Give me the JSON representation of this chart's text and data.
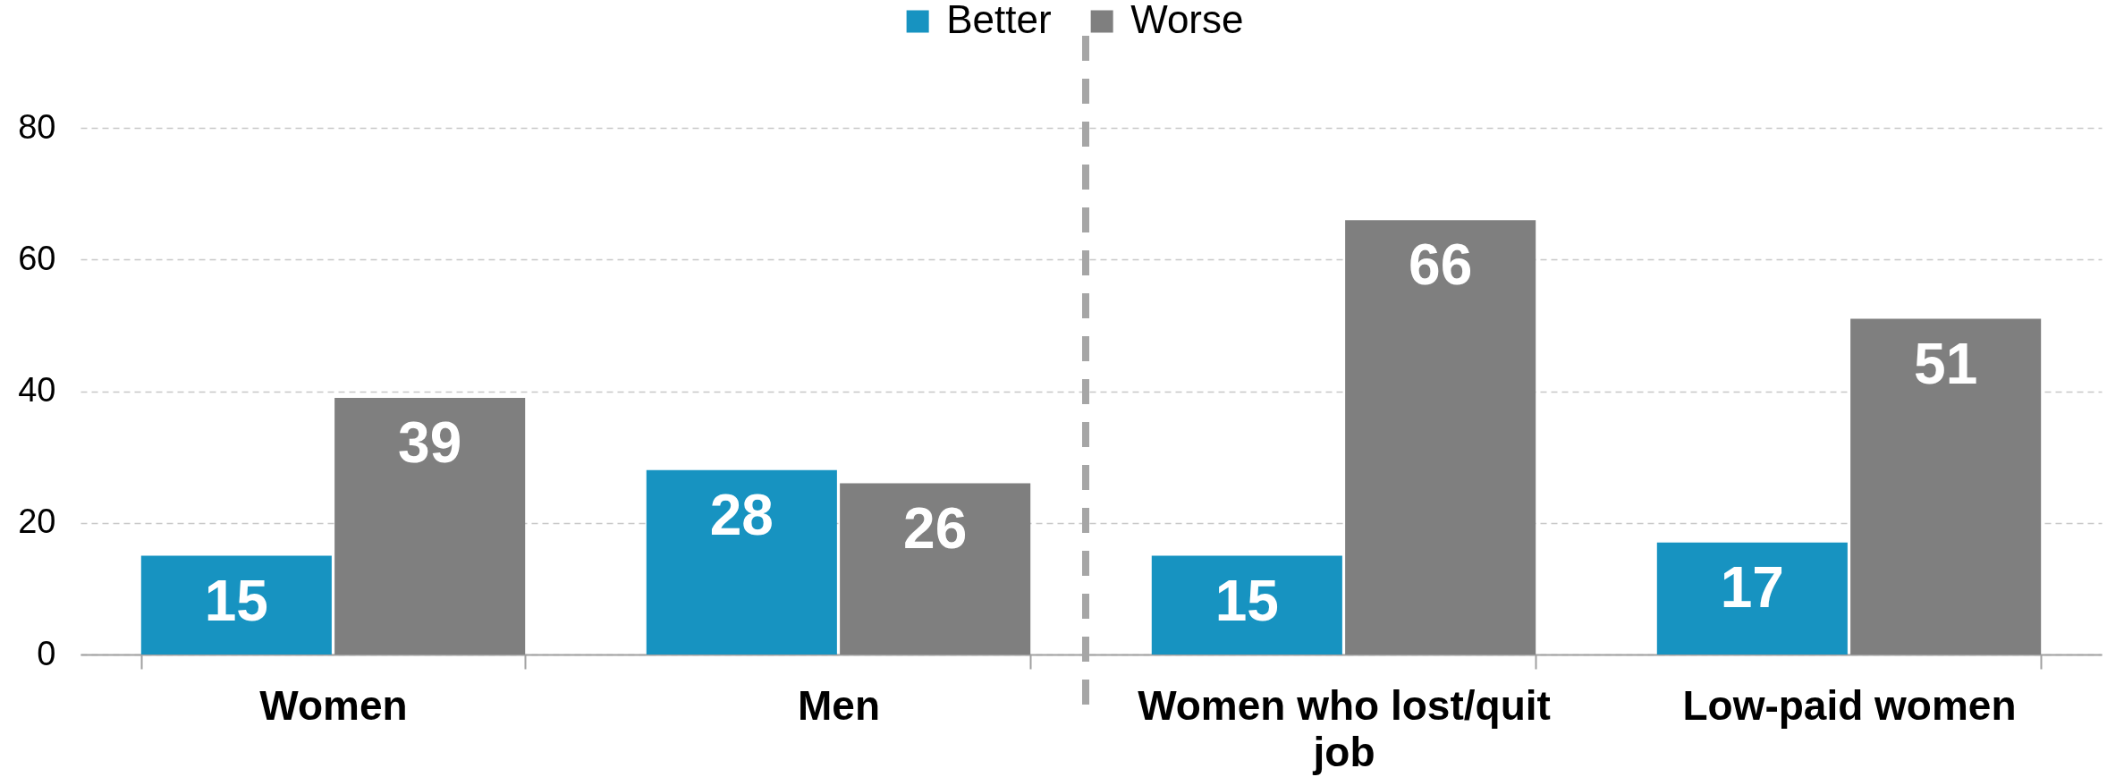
{
  "chart_data": {
    "type": "bar",
    "categories": [
      "Women",
      "Men",
      "Women who lost/quit job",
      "Low-paid women"
    ],
    "series": [
      {
        "name": "Better",
        "color": "#1793c1",
        "values": [
          15,
          28,
          15,
          17
        ]
      },
      {
        "name": "Worse",
        "color": "#7f7f7f",
        "values": [
          39,
          26,
          66,
          51
        ]
      }
    ],
    "ylim": [
      0,
      94
    ],
    "yticks": [
      0,
      20,
      40,
      60,
      80
    ],
    "grid": "y",
    "legend": "top",
    "data_labels": true
  }
}
